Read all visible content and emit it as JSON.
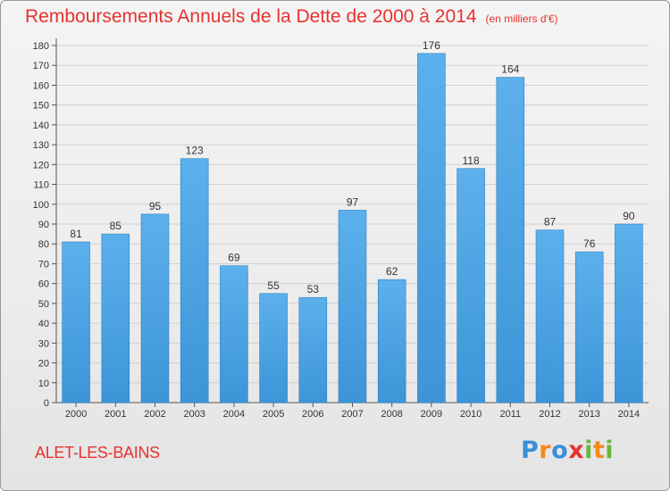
{
  "header": {
    "title": "Remboursements Annuels de la Dette de 2000 à 2014",
    "unit": "(en milliers d'€)"
  },
  "footer": {
    "city": "ALET-LES-BAINS",
    "brand": {
      "text": "Proxiti",
      "letters": [
        {
          "char": "P",
          "color": "#3a8fd6"
        },
        {
          "char": "r",
          "color": "#f28a1c"
        },
        {
          "char": "o",
          "color": "#3a8fd6"
        },
        {
          "char": "x",
          "color": "#e8322f"
        },
        {
          "char": "i",
          "color": "#6db43e"
        },
        {
          "char": "t",
          "color": "#f28a1c"
        },
        {
          "char": "i",
          "color": "#6db43e"
        }
      ]
    }
  },
  "chart_data": {
    "type": "bar",
    "title": "Remboursements Annuels de la Dette de 2000 à 2014",
    "subtitle": "(en milliers d'€)",
    "xlabel": "",
    "ylabel": "",
    "categories": [
      "2000",
      "2001",
      "2002",
      "2003",
      "2004",
      "2005",
      "2006",
      "2007",
      "2008",
      "2009",
      "2010",
      "2011",
      "2012",
      "2013",
      "2014"
    ],
    "values": [
      81,
      85,
      95,
      123,
      69,
      55,
      53,
      97,
      62,
      176,
      118,
      164,
      87,
      76,
      90
    ],
    "ylim": [
      0,
      180
    ],
    "yticks": [
      0,
      10,
      20,
      30,
      40,
      50,
      60,
      70,
      80,
      90,
      100,
      110,
      120,
      130,
      140,
      150,
      160,
      170,
      180
    ],
    "grid": true,
    "bar_color": "#3d95d8",
    "bar_color_top": "#5cb0ec"
  }
}
